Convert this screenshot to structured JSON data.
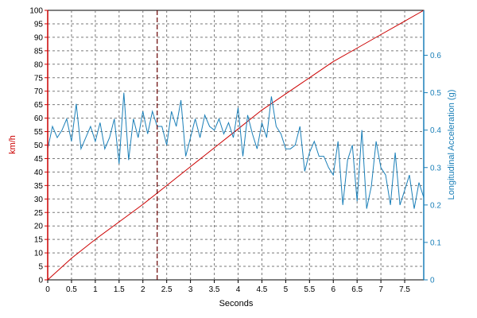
{
  "chart_data": {
    "type": "line",
    "xlabel": "Seconds",
    "ylabel_left": "km/h",
    "ylabel_right": "Longitudinal Acceleration (g)",
    "xlim": [
      0,
      7.9
    ],
    "ylim_left": [
      0,
      100
    ],
    "ylim_right": [
      0,
      0.72
    ],
    "x_ticks": [
      0,
      0.5,
      1,
      1.5,
      2,
      2.5,
      3,
      3.5,
      4,
      4.5,
      5,
      5.5,
      6,
      6.5,
      7,
      7.5
    ],
    "x_tick_labels": [
      "0",
      "0.5",
      "1",
      "1.5",
      "2",
      "2.5",
      "3",
      "3.5",
      "4",
      "4.5",
      "5",
      "5.5",
      "6",
      "6.5",
      "7",
      "7.5"
    ],
    "y_left_ticks": [
      0,
      5,
      10,
      15,
      20,
      25,
      30,
      35,
      40,
      45,
      50,
      55,
      60,
      65,
      70,
      75,
      80,
      85,
      90,
      95,
      100
    ],
    "y_left_tick_labels": [
      "0",
      "5",
      "10",
      "15",
      "20",
      "25",
      "30",
      "35",
      "40",
      "45",
      "50",
      "55",
      "60",
      "65",
      "70",
      "75",
      "80",
      "85",
      "90",
      "95",
      "100"
    ],
    "y_right_ticks": [
      0,
      0.1,
      0.2,
      0.3,
      0.4,
      0.5,
      0.6
    ],
    "y_right_tick_labels": [
      "0",
      "0.1",
      "0.2",
      "0.3",
      "0.4",
      "0.5",
      "0.6"
    ],
    "grid": true,
    "cursor_x": 2.3,
    "colors": {
      "speed": "#cc0000",
      "acceleration": "#1a7fb8",
      "left_axis": "#cc0000",
      "right_axis": "#1a7fb8",
      "grid": "#7a7a7a",
      "cursor": "#660000"
    },
    "series": [
      {
        "axis": "left",
        "x": [
          0,
          0.5,
          1,
          1.5,
          2,
          2.5,
          3,
          3.5,
          4,
          4.5,
          5,
          5.5,
          6,
          6.5,
          7,
          7.5,
          7.9
        ],
        "values": [
          0,
          8,
          15,
          21.5,
          28,
          35,
          42,
          49,
          56,
          63,
          69,
          75,
          81,
          86,
          91,
          96,
          100
        ]
      },
      {
        "axis": "right",
        "x": [
          0,
          0.1,
          0.2,
          0.3,
          0.4,
          0.5,
          0.6,
          0.7,
          0.8,
          0.9,
          1,
          1.1,
          1.2,
          1.3,
          1.4,
          1.5,
          1.6,
          1.7,
          1.8,
          1.9,
          2,
          2.1,
          2.2,
          2.3,
          2.4,
          2.5,
          2.6,
          2.7,
          2.8,
          2.9,
          3,
          3.1,
          3.2,
          3.3,
          3.4,
          3.5,
          3.6,
          3.7,
          3.8,
          3.9,
          4,
          4.1,
          4.2,
          4.3,
          4.4,
          4.5,
          4.6,
          4.7,
          4.8,
          4.9,
          5,
          5.1,
          5.2,
          5.3,
          5.4,
          5.5,
          5.6,
          5.7,
          5.8,
          5.9,
          6,
          6.1,
          6.2,
          6.3,
          6.4,
          6.5,
          6.6,
          6.7,
          6.8,
          6.9,
          7,
          7.1,
          7.2,
          7.3,
          7.4,
          7.5,
          7.6,
          7.7,
          7.8,
          7.9
        ],
        "values": [
          0.35,
          0.41,
          0.38,
          0.4,
          0.43,
          0.37,
          0.47,
          0.35,
          0.38,
          0.41,
          0.37,
          0.42,
          0.35,
          0.38,
          0.43,
          0.31,
          0.5,
          0.32,
          0.43,
          0.38,
          0.45,
          0.39,
          0.45,
          0.41,
          0.41,
          0.36,
          0.45,
          0.41,
          0.48,
          0.33,
          0.38,
          0.43,
          0.38,
          0.44,
          0.41,
          0.4,
          0.43,
          0.39,
          0.42,
          0.38,
          0.46,
          0.33,
          0.44,
          0.39,
          0.35,
          0.42,
          0.38,
          0.49,
          0.41,
          0.39,
          0.35,
          0.35,
          0.36,
          0.41,
          0.29,
          0.34,
          0.37,
          0.33,
          0.33,
          0.3,
          0.28,
          0.37,
          0.2,
          0.32,
          0.36,
          0.21,
          0.4,
          0.19,
          0.25,
          0.37,
          0.3,
          0.28,
          0.2,
          0.34,
          0.2,
          0.24,
          0.28,
          0.19,
          0.26,
          0.22
        ]
      }
    ]
  }
}
